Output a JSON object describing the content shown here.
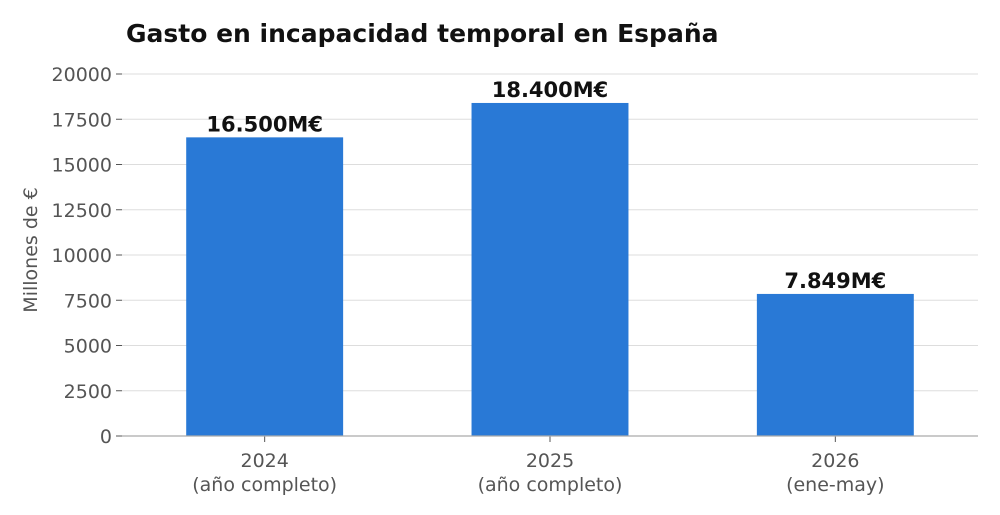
{
  "chart_data": {
    "type": "bar",
    "title": "Gasto en incapacidad temporal en España",
    "ylabel": "Millones de €",
    "xlabel": "",
    "ylim": [
      0,
      20000
    ],
    "yticks": [
      0,
      2500,
      5000,
      7500,
      10000,
      12500,
      15000,
      17500,
      20000
    ],
    "categories": [
      [
        "2024",
        "(año completo)"
      ],
      [
        "2025",
        "(año completo)"
      ],
      [
        "2026",
        "(ene-may)"
      ]
    ],
    "values": [
      16500,
      18400,
      7849
    ],
    "data_labels": [
      "16.500M€",
      "18.400M€",
      "7.849M€"
    ],
    "bar_color": "#2979d6",
    "grid": true
  }
}
